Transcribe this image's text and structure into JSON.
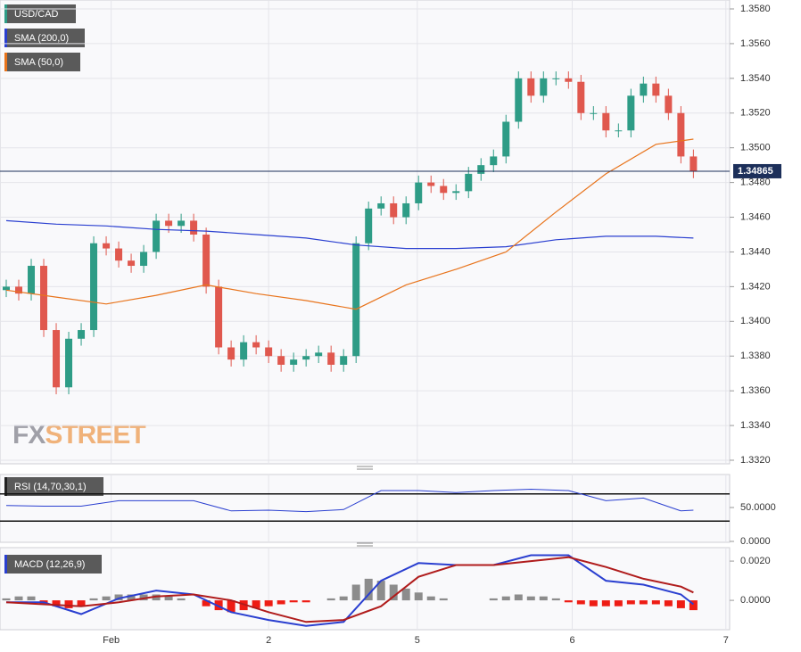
{
  "chart_data": [
    {
      "type": "candlestick",
      "title": "USD/CAD",
      "xlim": [
        -0.5,
        57.9
      ],
      "xticks": [
        {
          "value": 8.4,
          "label": "Feb"
        },
        {
          "value": 21,
          "label": "2"
        },
        {
          "value": 32.9,
          "label": "5"
        },
        {
          "value": 45.3,
          "label": "6"
        },
        {
          "value": 57.6,
          "label": "7"
        }
      ],
      "ylim": [
        1.332,
        1.358
      ],
      "yticks": [
        {
          "value": 1.332,
          "label": "1.3320"
        },
        {
          "value": 1.334,
          "label": "1.3340"
        },
        {
          "value": 1.336,
          "label": "1.3360"
        },
        {
          "value": 1.338,
          "label": "1.3380"
        },
        {
          "value": 1.34,
          "label": "1.3400"
        },
        {
          "value": 1.342,
          "label": "1.3420"
        },
        {
          "value": 1.344,
          "label": "1.3440"
        },
        {
          "value": 1.346,
          "label": "1.3460"
        },
        {
          "value": 1.348,
          "label": "1.3480"
        },
        {
          "value": 1.35,
          "label": "1.3500"
        },
        {
          "value": 1.352,
          "label": "1.3520"
        },
        {
          "value": 1.354,
          "label": "1.3540"
        },
        {
          "value": 1.356,
          "label": "1.3560"
        },
        {
          "value": 1.358,
          "label": "1.3580"
        }
      ],
      "grid": true,
      "up_color": "#2e9c86",
      "down_color": "#e0584e",
      "last_price_color": "#1c2f5a",
      "open": [
        1.3418,
        1.342,
        1.3416,
        1.3432,
        1.3395,
        1.3362,
        1.339,
        1.3395,
        1.3445,
        1.3442,
        1.3435,
        1.3432,
        1.344,
        1.3458,
        1.3455,
        1.3458,
        1.345,
        1.342,
        1.3385,
        1.3378,
        1.3388,
        1.3385,
        1.338,
        1.3375,
        1.3378,
        1.338,
        1.3382,
        1.3375,
        1.338,
        1.3445,
        1.3465,
        1.3468,
        1.346,
        1.3468,
        1.348,
        1.3478,
        1.3474,
        1.3475,
        1.3485,
        1.349,
        1.3495,
        1.3515,
        1.354,
        1.353,
        1.354,
        1.354,
        1.3538,
        1.352,
        1.352,
        1.351,
        1.351,
        1.353,
        1.3537,
        1.353,
        1.352,
        1.3495
      ],
      "high": [
        1.3424,
        1.3424,
        1.3436,
        1.3436,
        1.3399,
        1.3394,
        1.3399,
        1.3449,
        1.3449,
        1.3446,
        1.3439,
        1.3444,
        1.3462,
        1.3462,
        1.3462,
        1.3462,
        1.3454,
        1.3424,
        1.3389,
        1.3392,
        1.3392,
        1.3389,
        1.3384,
        1.3382,
        1.3384,
        1.3386,
        1.3386,
        1.3384,
        1.3449,
        1.3469,
        1.3472,
        1.3472,
        1.3472,
        1.3484,
        1.3484,
        1.3482,
        1.3479,
        1.3489,
        1.3494,
        1.3499,
        1.3519,
        1.3544,
        1.3544,
        1.3544,
        1.3544,
        1.3544,
        1.3542,
        1.3524,
        1.3524,
        1.3514,
        1.3534,
        1.3541,
        1.3541,
        1.3534,
        1.3524,
        1.3499
      ],
      "low": [
        1.3414,
        1.3412,
        1.3412,
        1.3391,
        1.3358,
        1.3358,
        1.3386,
        1.3391,
        1.3438,
        1.3431,
        1.3428,
        1.3428,
        1.3436,
        1.3451,
        1.3451,
        1.3446,
        1.3416,
        1.3381,
        1.3374,
        1.3374,
        1.3381,
        1.3376,
        1.3371,
        1.3371,
        1.3374,
        1.3376,
        1.3371,
        1.3371,
        1.3376,
        1.3441,
        1.3461,
        1.3456,
        1.3456,
        1.3464,
        1.3474,
        1.347,
        1.347,
        1.3471,
        1.3481,
        1.3486,
        1.3491,
        1.3511,
        1.3526,
        1.3526,
        1.3536,
        1.3534,
        1.3516,
        1.3516,
        1.3506,
        1.3506,
        1.3506,
        1.3526,
        1.3526,
        1.3516,
        1.3491,
        1.34825
      ],
      "close": [
        1.342,
        1.3416,
        1.3432,
        1.3395,
        1.3362,
        1.339,
        1.3395,
        1.3445,
        1.3442,
        1.3435,
        1.3432,
        1.344,
        1.3458,
        1.3455,
        1.3458,
        1.345,
        1.342,
        1.3385,
        1.3378,
        1.3388,
        1.3385,
        1.338,
        1.3375,
        1.3378,
        1.338,
        1.3382,
        1.3375,
        1.338,
        1.3445,
        1.3465,
        1.3468,
        1.346,
        1.3468,
        1.348,
        1.3478,
        1.3474,
        1.3475,
        1.3485,
        1.349,
        1.3495,
        1.3515,
        1.354,
        1.353,
        1.354,
        1.354,
        1.3538,
        1.352,
        1.352,
        1.351,
        1.351,
        1.353,
        1.3537,
        1.353,
        1.352,
        1.3495,
        1.34865
      ],
      "overlays": [
        {
          "name": "SMA (200,0)",
          "color": "#2a3fd0",
          "x": [
            0,
            4,
            8,
            12,
            16,
            20,
            24,
            28,
            32,
            36,
            40,
            44,
            48,
            52,
            55
          ],
          "values": [
            1.3458,
            1.3456,
            1.3455,
            1.3453,
            1.3452,
            1.345,
            1.3448,
            1.3444,
            1.3442,
            1.3442,
            1.3443,
            1.3447,
            1.3449,
            1.3449,
            1.3448
          ]
        },
        {
          "name": "SMA (50,0)",
          "color": "#e8741c",
          "x": [
            0,
            4,
            8,
            12,
            16,
            20,
            24,
            28,
            32,
            36,
            40,
            44,
            48,
            52,
            55
          ],
          "values": [
            1.3418,
            1.3414,
            1.341,
            1.3415,
            1.3421,
            1.3416,
            1.3412,
            1.3407,
            1.3421,
            1.343,
            1.344,
            1.3463,
            1.3485,
            1.3502,
            1.3505
          ]
        }
      ],
      "watermark": [
        "FX",
        "STREET"
      ]
    },
    {
      "type": "rsi",
      "title": "RSI (14,70,30,1)",
      "color": "#2a3fd0",
      "x": [
        0,
        3,
        6,
        9,
        12,
        15,
        18,
        21,
        24,
        27,
        30,
        33,
        36,
        39,
        42,
        45,
        48,
        51,
        54,
        55
      ],
      "values": [
        53,
        52,
        52,
        60,
        60,
        60,
        45,
        46,
        44,
        47,
        75,
        75,
        72,
        75,
        77,
        75,
        60,
        64,
        45,
        46
      ],
      "ylim": [
        0,
        100
      ],
      "yticks": [
        {
          "value": 50,
          "label": "50.0000"
        },
        {
          "value": 0,
          "label": "0.0000"
        }
      ],
      "levels": [
        70,
        30
      ]
    },
    {
      "type": "macd",
      "title": "MACD (12,26,9)",
      "x": [
        0,
        3,
        6,
        9,
        12,
        15,
        18,
        21,
        24,
        27,
        30,
        33,
        36,
        39,
        42,
        45,
        48,
        51,
        54,
        55
      ],
      "series": [
        {
          "color": "#2a3fd0",
          "values": [
            -0.0001,
            -0.0001,
            -0.0007,
            0.0001,
            0.0005,
            0.0003,
            -0.0006,
            -0.001,
            -0.0013,
            -0.0011,
            0.001,
            0.0019,
            0.0018,
            0.0018,
            0.0023,
            0.0023,
            0.001,
            0.0008,
            0.0003,
            -0.0002
          ]
        },
        {
          "color": "#b01c1c",
          "values": [
            -0.0001,
            -0.0002,
            -0.0003,
            -0.0001,
            0.0002,
            0.0003,
            0.0,
            -0.0006,
            -0.0011,
            -0.001,
            -0.0003,
            0.0012,
            0.0018,
            0.0018,
            0.002,
            0.0022,
            0.0017,
            0.0011,
            0.0007,
            0.0004
          ]
        }
      ],
      "histogram": [
        0.0001,
        0.0002,
        0.0002,
        -0.0002,
        -0.0003,
        -0.0004,
        -0.0003,
        0.0001,
        0.0002,
        0.0003,
        0.0003,
        0.0003,
        0.0003,
        0.0002,
        0.0001,
        0.0,
        -0.0003,
        -0.0005,
        -0.0006,
        -0.0005,
        -0.0004,
        -0.0003,
        -0.0002,
        -0.0001,
        -0.0001,
        0.0,
        0.0001,
        0.0002,
        0.0008,
        0.0011,
        0.001,
        0.0008,
        0.0006,
        0.0004,
        0.0002,
        0.0001,
        0.0,
        0.0,
        0.0,
        0.0001,
        0.0002,
        0.0003,
        0.0002,
        0.0002,
        0.0001,
        -0.0001,
        -0.0002,
        -0.0003,
        -0.0003,
        -0.0003,
        -0.0002,
        -0.0002,
        -0.0002,
        -0.0003,
        -0.0004,
        -0.0005
      ],
      "hist_colors": [
        "#8c8c8c",
        "#ee1c14"
      ],
      "ylim": [
        -0.00145,
        0.00264
      ],
      "yticks": [
        {
          "value": 0.002,
          "label": "0.0020"
        },
        {
          "value": 0,
          "label": "0.0000"
        }
      ]
    }
  ]
}
